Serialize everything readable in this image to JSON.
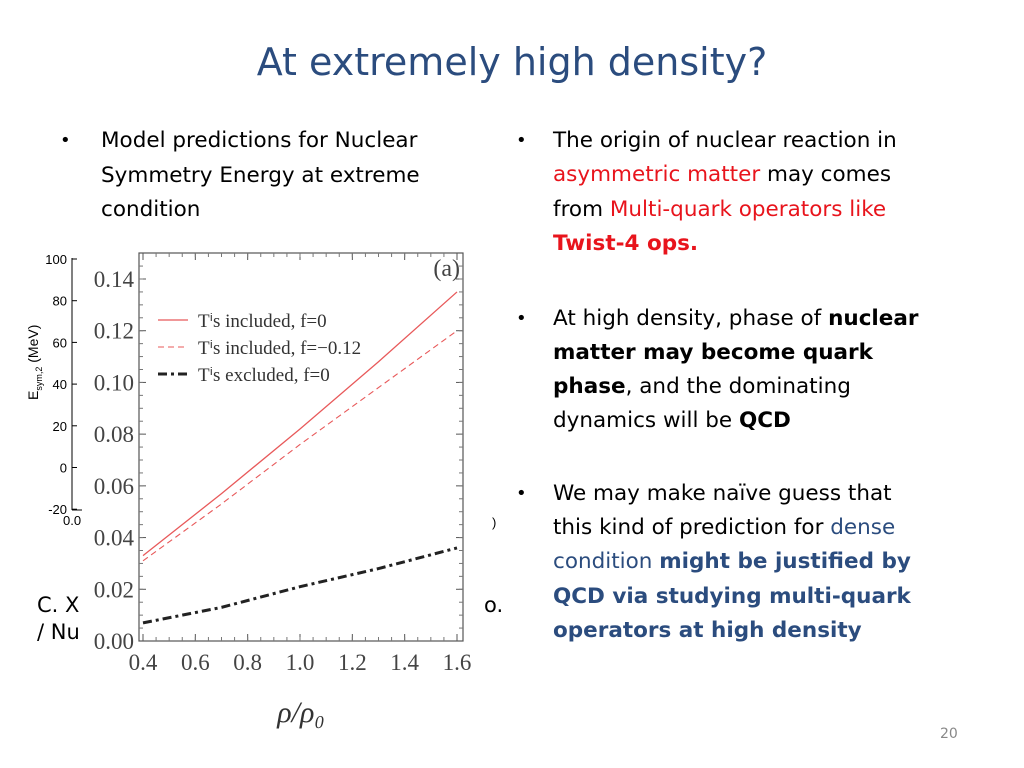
{
  "title": "At extremely high density?",
  "left": {
    "bullet": "•",
    "lines": [
      "Model predictions for Nuclear",
      "Symmetry Energy at extreme",
      "condition"
    ],
    "citation_fragments": [
      "C. X",
      "/ Nu",
      "o."
    ]
  },
  "right": {
    "bullet": "•",
    "b1": {
      "l1": [
        "The origin of nuclear reaction in"
      ],
      "l2": [
        "asymmetric matter",
        " may comes"
      ],
      "l3": [
        "from ",
        "Multi-quark operators like"
      ],
      "l4": [
        "Twist-4 ops."
      ]
    },
    "b2": {
      "l1": [
        "At high density, phase of ",
        "nuclear"
      ],
      "l2": [
        "matter may become quark"
      ],
      "l3": [
        "phase",
        ", and the dominating"
      ],
      "l4": [
        "dynamics will be ",
        "QCD"
      ]
    },
    "b3": {
      "l1": [
        "We may make naïve guess that"
      ],
      "l2": [
        "this kind of prediction for ",
        "dense"
      ],
      "l3": [
        "condition ",
        "might be justified by"
      ],
      "l4": [
        "QCD via studying multi-quark"
      ],
      "l5": [
        "operators at high density"
      ]
    }
  },
  "page_number": "20",
  "colors": {
    "title": "#2b4c7e",
    "highlight_red": "#e8141c",
    "highlight_blue": "#2b4c7e"
  },
  "background_chart": {
    "ylabel": "E",
    "ylabel_sub": "sym,2",
    "ylabel_unit": " (MeV)",
    "yticks": [
      "100",
      "80",
      "60",
      "40",
      "20",
      "0",
      "-20"
    ],
    "xtick_fragment": "0.0",
    "right_fragment": ")"
  },
  "chart_data": {
    "type": "line",
    "panel_label": "(a)",
    "xlabel": "ρ/ρ₀",
    "ylabel": "",
    "xlim": [
      0.4,
      1.6
    ],
    "ylim": [
      0.0,
      0.15
    ],
    "xticks": [
      "0.4",
      "0.6",
      "0.8",
      "1.0",
      "1.2",
      "1.4",
      "1.6"
    ],
    "yticks": [
      "0.00",
      "0.02",
      "0.04",
      "0.06",
      "0.08",
      "0.10",
      "0.12",
      "0.14"
    ],
    "legend_position": "top-left",
    "x": [
      0.4,
      0.7,
      1.0,
      1.3,
      1.6
    ],
    "series": [
      {
        "name": "Tⁱs included, f=0",
        "color": "#e8595a",
        "style": "solid",
        "values": [
          0.033,
          0.057,
          0.082,
          0.108,
          0.135
        ]
      },
      {
        "name": "Tⁱs included, f=−0.12",
        "color": "#e8595a",
        "style": "dashed",
        "values": [
          0.031,
          0.053,
          0.076,
          0.098,
          0.12
        ]
      },
      {
        "name": "Tⁱs excluded, f=0",
        "color": "#222222",
        "style": "dashdot",
        "values": [
          0.007,
          0.013,
          0.021,
          0.028,
          0.036
        ]
      }
    ]
  }
}
